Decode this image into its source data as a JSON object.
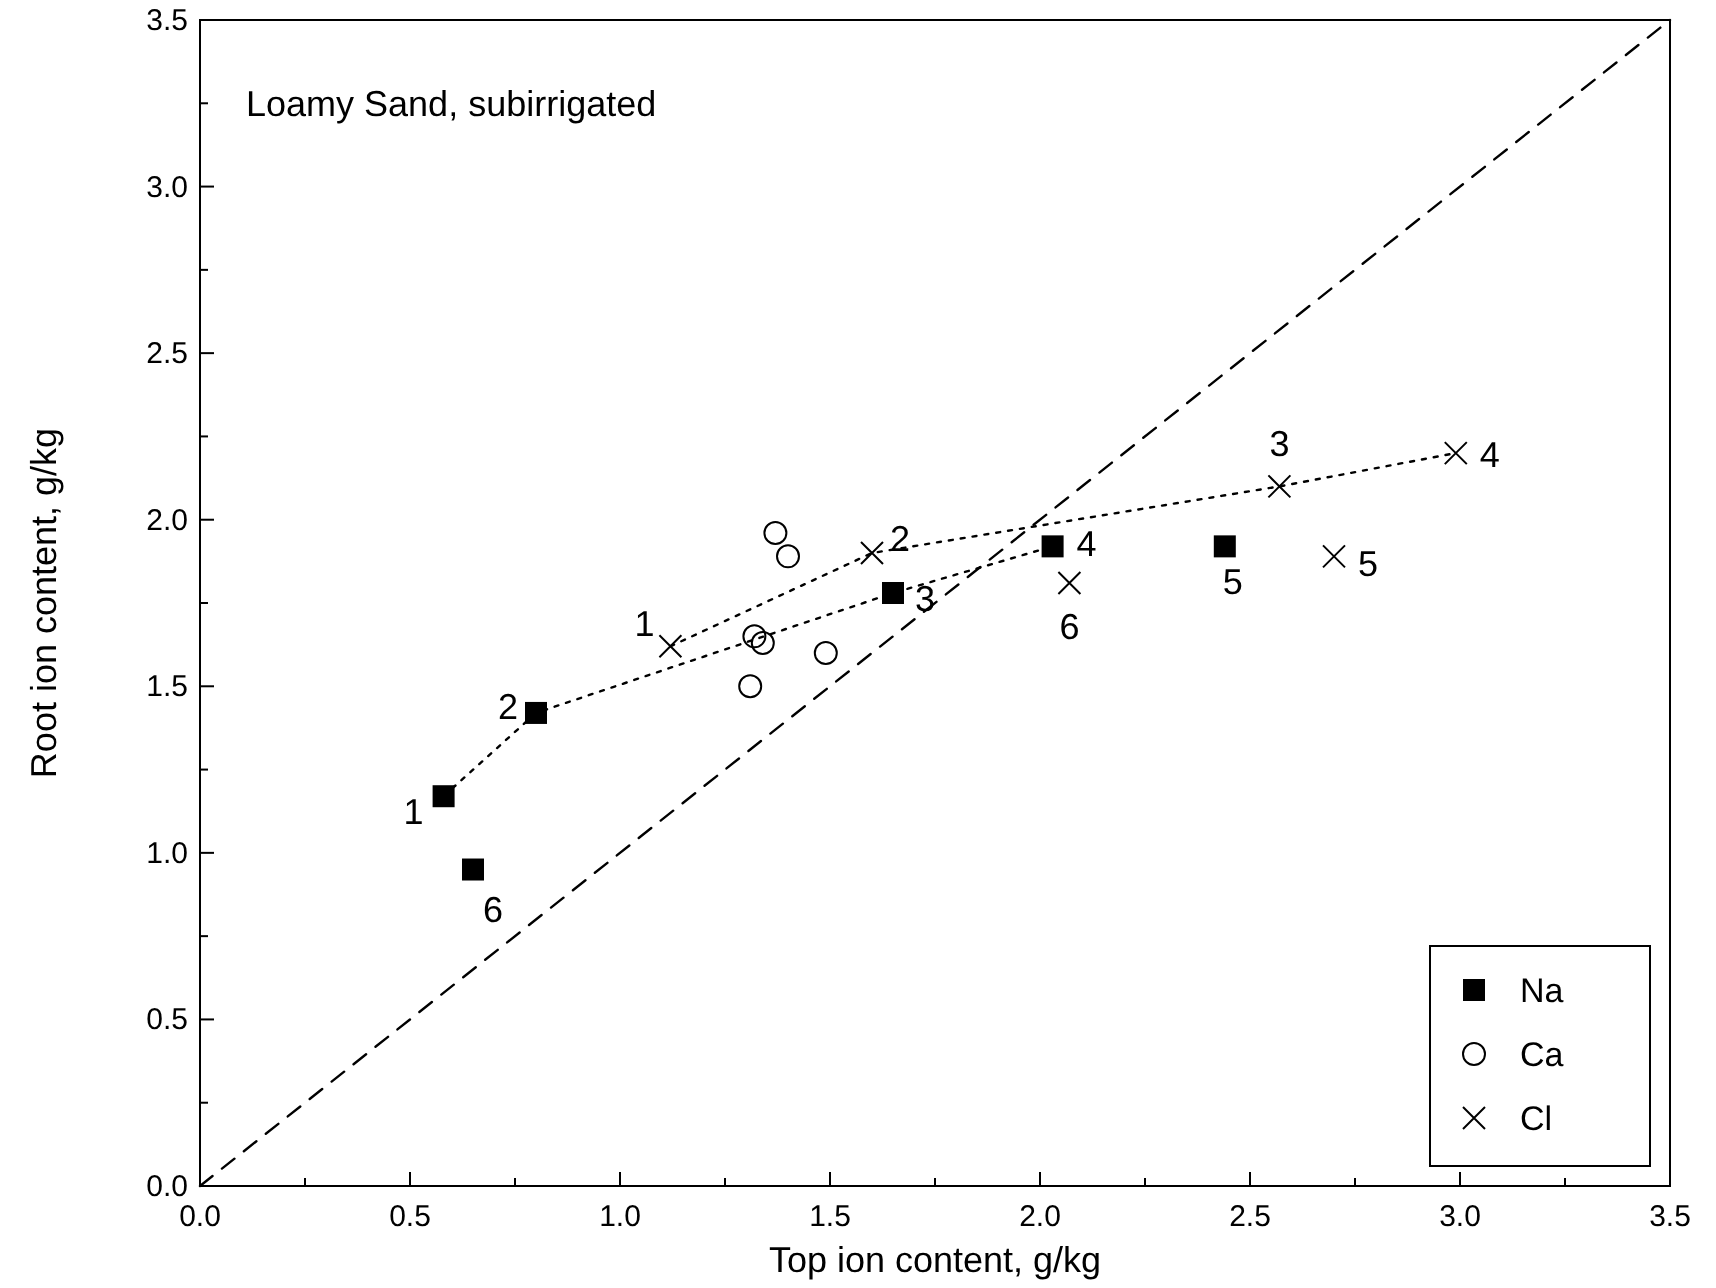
{
  "chart_data": {
    "type": "scatter",
    "xlabel": "Top ion content, g/kg",
    "ylabel": "Root ion content, g/kg",
    "xlim": [
      0,
      3.5
    ],
    "ylim": [
      0,
      3.5
    ],
    "xticks": [
      {
        "value": 0,
        "label": "0.0"
      },
      {
        "value": 0.25,
        "label": null
      },
      {
        "value": 0.5,
        "label": "0.5"
      },
      {
        "value": 0.75,
        "label": null
      },
      {
        "value": 1,
        "label": "1.0"
      },
      {
        "value": 1.25,
        "label": null
      },
      {
        "value": 1.5,
        "label": "1.5"
      },
      {
        "value": 1.75,
        "label": null
      },
      {
        "value": 2,
        "label": "2.0"
      },
      {
        "value": 2.25,
        "label": null
      },
      {
        "value": 2.5,
        "label": "2.5"
      },
      {
        "value": 2.75,
        "label": null
      },
      {
        "value": 3,
        "label": "3.0"
      },
      {
        "value": 3.25,
        "label": null
      },
      {
        "value": 3.5,
        "label": "3.5"
      }
    ],
    "yticks": [
      {
        "value": 0,
        "label": "0.0"
      },
      {
        "value": 0.25,
        "label": null
      },
      {
        "value": 0.5,
        "label": "0.5"
      },
      {
        "value": 0.75,
        "label": null
      },
      {
        "value": 1,
        "label": "1.0"
      },
      {
        "value": 1.25,
        "label": null
      },
      {
        "value": 1.5,
        "label": "1.5"
      },
      {
        "value": 1.75,
        "label": null
      },
      {
        "value": 2,
        "label": "2.0"
      },
      {
        "value": 2.25,
        "label": null
      },
      {
        "value": 2.5,
        "label": "2.5"
      },
      {
        "value": 2.75,
        "label": null
      },
      {
        "value": 3,
        "label": "3.0"
      },
      {
        "value": 3.25,
        "label": null
      },
      {
        "value": 3.5,
        "label": "3.5"
      }
    ],
    "grid": false,
    "legend": "bottom right",
    "series": [
      {
        "type": "line",
        "color": "#000000",
        "marker": "none",
        "line_style": "dashed",
        "x": [
          0,
          3.5
        ],
        "values": [
          0,
          3.5
        ]
      },
      {
        "type": "line",
        "color": "#000000",
        "marker": "none",
        "line_style": "dotted",
        "x": [
          0.58,
          0.8,
          1.65,
          2.03
        ],
        "values": [
          1.17,
          1.42,
          1.78,
          1.92
        ]
      },
      {
        "type": "line",
        "color": "#000000",
        "marker": "none",
        "line_style": "dotted",
        "x": [
          1.12,
          1.6,
          2.57,
          2.99
        ],
        "values": [
          1.62,
          1.9,
          2.1,
          2.2
        ]
      },
      {
        "name": "Na",
        "color": "#000000",
        "marker": "square",
        "x": [
          0.58,
          0.8,
          1.65,
          2.03,
          2.44,
          0.65
        ],
        "values": [
          1.17,
          1.42,
          1.78,
          1.92,
          1.92,
          0.95
        ]
      },
      {
        "name": "Ca",
        "color": "#000000",
        "marker": "circle",
        "x": [
          1.37,
          1.4,
          1.32,
          1.34,
          1.31,
          1.49
        ],
        "values": [
          1.96,
          1.89,
          1.65,
          1.63,
          1.5,
          1.6
        ]
      },
      {
        "name": "Cl",
        "color": "#000000",
        "marker": "cross",
        "x": [
          1.12,
          1.6,
          2.57,
          2.99,
          2.7,
          2.07
        ],
        "values": [
          1.62,
          1.9,
          2.1,
          2.2,
          1.89,
          1.81
        ]
      }
    ],
    "annotations": [
      "Loamy Sand, subirrigated",
      {
        "text": "1",
        "x": 0.58,
        "y": 1.17
      },
      {
        "text": "2",
        "x": 0.8,
        "y": 1.42
      },
      {
        "text": "3",
        "x": 1.65,
        "y": 1.78
      },
      {
        "text": "4",
        "x": 2.03,
        "y": 1.92
      },
      {
        "text": "5",
        "x": 2.44,
        "y": 1.92
      },
      {
        "text": "6",
        "x": 0.65,
        "y": 0.95
      },
      {
        "text": "1",
        "x": 1.12,
        "y": 1.62
      },
      {
        "text": "2",
        "x": 1.6,
        "y": 1.9
      },
      {
        "text": "3",
        "x": 2.57,
        "y": 2.1
      },
      {
        "text": "4",
        "x": 2.99,
        "y": 2.2
      },
      {
        "text": "5",
        "x": 2.7,
        "y": 1.89
      },
      {
        "text": "6",
        "x": 2.07,
        "y": 1.81
      }
    ]
  }
}
